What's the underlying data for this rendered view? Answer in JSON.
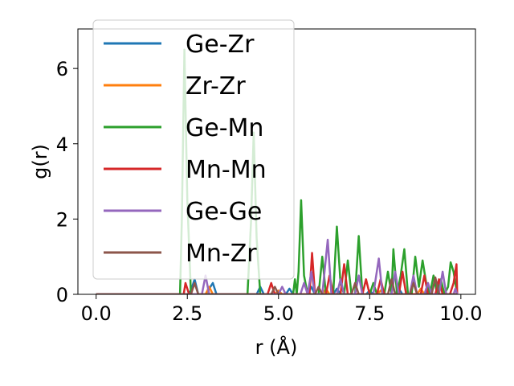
{
  "chart_data": {
    "type": "line",
    "title": "",
    "xlabel": "r (Å)",
    "ylabel": "g(r)",
    "xlim": [
      -0.5,
      10.4
    ],
    "ylim": [
      0,
      7.05
    ],
    "x_ticks": [
      0.0,
      2.5,
      5.0,
      7.5,
      10.0
    ],
    "x_tick_labels": [
      "0.0",
      "2.5",
      "5.0",
      "7.5",
      "10.0"
    ],
    "y_ticks": [
      0,
      2,
      4,
      6
    ],
    "y_tick_labels": [
      "0",
      "2",
      "4",
      "6"
    ],
    "legend_position": "top-left",
    "series": [
      {
        "name": "Ge-Zr",
        "color": "#1f77b4",
        "points": [
          [
            0,
            0
          ],
          [
            2.5,
            0
          ],
          [
            2.6,
            0.1
          ],
          [
            2.7,
            0.4
          ],
          [
            2.8,
            0
          ],
          [
            3.0,
            0
          ],
          [
            3.2,
            0.3
          ],
          [
            3.3,
            0
          ],
          [
            4.4,
            0
          ],
          [
            4.5,
            0.2
          ],
          [
            4.6,
            0
          ],
          [
            5.2,
            0
          ],
          [
            5.3,
            0.15
          ],
          [
            5.4,
            0
          ],
          [
            5.8,
            0
          ],
          [
            5.9,
            0.2
          ],
          [
            6.0,
            0
          ],
          [
            6.5,
            0
          ],
          [
            6.6,
            0.15
          ],
          [
            6.7,
            0
          ],
          [
            7.4,
            0
          ],
          [
            7.5,
            0.1
          ],
          [
            7.6,
            0
          ],
          [
            8.2,
            0
          ],
          [
            8.3,
            0.15
          ],
          [
            8.4,
            0
          ],
          [
            9.0,
            0
          ],
          [
            9.1,
            0.1
          ],
          [
            9.2,
            0
          ],
          [
            9.9,
            0
          ]
        ]
      },
      {
        "name": "Zr-Zr",
        "color": "#ff7f0e",
        "points": [
          [
            0,
            0
          ],
          [
            3.0,
            0
          ],
          [
            3.1,
            0.2
          ],
          [
            3.2,
            0
          ],
          [
            4.9,
            0
          ],
          [
            5.0,
            0.1
          ],
          [
            5.1,
            0
          ],
          [
            6.2,
            0
          ],
          [
            6.3,
            0.15
          ],
          [
            6.4,
            0
          ],
          [
            7.7,
            0
          ],
          [
            7.8,
            0.1
          ],
          [
            7.9,
            0
          ],
          [
            8.8,
            0
          ],
          [
            8.9,
            0.15
          ],
          [
            9.0,
            0
          ],
          [
            9.9,
            0
          ]
        ]
      },
      {
        "name": "Ge-Mn",
        "color": "#2ca02c",
        "points": [
          [
            0,
            0
          ],
          [
            2.2,
            0
          ],
          [
            2.3,
            0
          ],
          [
            2.35,
            2.0
          ],
          [
            2.42,
            6.5
          ],
          [
            2.5,
            2.5
          ],
          [
            2.6,
            0
          ],
          [
            4.15,
            0
          ],
          [
            4.25,
            2.0
          ],
          [
            4.32,
            4.3
          ],
          [
            4.4,
            1.5
          ],
          [
            4.5,
            0
          ],
          [
            5.4,
            0
          ],
          [
            5.45,
            0.4
          ],
          [
            5.5,
            0
          ],
          [
            5.55,
            0.6
          ],
          [
            5.62,
            2.5
          ],
          [
            5.7,
            0.5
          ],
          [
            5.8,
            0
          ],
          [
            6.1,
            0
          ],
          [
            6.2,
            1.0
          ],
          [
            6.3,
            0
          ],
          [
            6.5,
            0
          ],
          [
            6.6,
            1.8
          ],
          [
            6.7,
            0.3
          ],
          [
            6.8,
            0
          ],
          [
            6.9,
            0.9
          ],
          [
            7.0,
            0
          ],
          [
            7.1,
            0
          ],
          [
            7.2,
            1.55
          ],
          [
            7.3,
            0
          ],
          [
            7.5,
            0
          ],
          [
            7.6,
            0.3
          ],
          [
            7.7,
            0
          ],
          [
            7.9,
            0
          ],
          [
            8.0,
            0.6
          ],
          [
            8.1,
            0
          ],
          [
            8.15,
            1.2
          ],
          [
            8.25,
            0
          ],
          [
            8.35,
            0.5
          ],
          [
            8.45,
            1.2
          ],
          [
            8.55,
            0
          ],
          [
            8.65,
            0
          ],
          [
            8.75,
            1.0
          ],
          [
            8.85,
            0.2
          ],
          [
            8.95,
            0.9
          ],
          [
            9.05,
            0.3
          ],
          [
            9.15,
            0
          ],
          [
            9.25,
            0.5
          ],
          [
            9.35,
            0
          ],
          [
            9.45,
            0.4
          ],
          [
            9.55,
            0
          ],
          [
            9.65,
            0.2
          ],
          [
            9.72,
            0.85
          ],
          [
            9.8,
            0.6
          ],
          [
            9.9,
            0
          ]
        ]
      },
      {
        "name": "Mn-Mn",
        "color": "#d62728",
        "points": [
          [
            0,
            0
          ],
          [
            2.4,
            0
          ],
          [
            2.45,
            0.3
          ],
          [
            2.55,
            0
          ],
          [
            4.7,
            0
          ],
          [
            4.8,
            0.3
          ],
          [
            4.9,
            0
          ],
          [
            5.85,
            0
          ],
          [
            5.92,
            1.1
          ],
          [
            6.0,
            0
          ],
          [
            6.3,
            0
          ],
          [
            6.4,
            0.5
          ],
          [
            6.5,
            0
          ],
          [
            6.7,
            0
          ],
          [
            6.8,
            0.8
          ],
          [
            6.9,
            0
          ],
          [
            7.3,
            0
          ],
          [
            7.4,
            0.4
          ],
          [
            7.5,
            0
          ],
          [
            7.7,
            0
          ],
          [
            7.8,
            0.4
          ],
          [
            7.9,
            0
          ],
          [
            8.3,
            0
          ],
          [
            8.4,
            0.6
          ],
          [
            8.5,
            0
          ],
          [
            8.9,
            0
          ],
          [
            9.0,
            0.5
          ],
          [
            9.1,
            0
          ],
          [
            9.3,
            0
          ],
          [
            9.4,
            0.4
          ],
          [
            9.5,
            0
          ],
          [
            9.7,
            0
          ],
          [
            9.8,
            0.3
          ],
          [
            9.88,
            0.8
          ],
          [
            9.9,
            0
          ]
        ]
      },
      {
        "name": "Ge-Ge",
        "color": "#9467bd",
        "points": [
          [
            0,
            0
          ],
          [
            2.9,
            0
          ],
          [
            3.0,
            0.5
          ],
          [
            3.1,
            0
          ],
          [
            5.0,
            0
          ],
          [
            5.1,
            0.2
          ],
          [
            5.2,
            0
          ],
          [
            5.6,
            0
          ],
          [
            5.7,
            0.3
          ],
          [
            5.8,
            0
          ],
          [
            5.9,
            0.6
          ],
          [
            6.0,
            0
          ],
          [
            6.2,
            0
          ],
          [
            6.35,
            1.45
          ],
          [
            6.45,
            0
          ],
          [
            6.6,
            0
          ],
          [
            6.7,
            0.4
          ],
          [
            6.8,
            0
          ],
          [
            7.1,
            0
          ],
          [
            7.2,
            0.5
          ],
          [
            7.3,
            0
          ],
          [
            7.6,
            0
          ],
          [
            7.75,
            0.95
          ],
          [
            7.85,
            0
          ],
          [
            8.1,
            0
          ],
          [
            8.2,
            0.6
          ],
          [
            8.3,
            0
          ],
          [
            8.6,
            0
          ],
          [
            8.7,
            0.5
          ],
          [
            8.8,
            0
          ],
          [
            9.0,
            0
          ],
          [
            9.1,
            0.3
          ],
          [
            9.2,
            0
          ],
          [
            9.4,
            0
          ],
          [
            9.5,
            0.6
          ],
          [
            9.6,
            0
          ],
          [
            9.8,
            0
          ],
          [
            9.85,
            0.15
          ],
          [
            9.9,
            0
          ]
        ]
      },
      {
        "name": "Mn-Zr",
        "color": "#8c564b",
        "points": [
          [
            0,
            0
          ],
          [
            2.6,
            0
          ],
          [
            2.7,
            0.3
          ],
          [
            2.8,
            0
          ],
          [
            4.8,
            0
          ],
          [
            4.9,
            0.2
          ],
          [
            5.0,
            0
          ],
          [
            6.0,
            0
          ],
          [
            6.1,
            0.2
          ],
          [
            6.2,
            0
          ],
          [
            7.0,
            0
          ],
          [
            7.1,
            0.3
          ],
          [
            7.2,
            0
          ],
          [
            8.0,
            0
          ],
          [
            8.1,
            0.4
          ],
          [
            8.2,
            0
          ],
          [
            8.6,
            0
          ],
          [
            8.7,
            0.3
          ],
          [
            8.8,
            0
          ],
          [
            9.2,
            0
          ],
          [
            9.3,
            0.45
          ],
          [
            9.4,
            0
          ],
          [
            9.9,
            0
          ]
        ]
      }
    ]
  }
}
